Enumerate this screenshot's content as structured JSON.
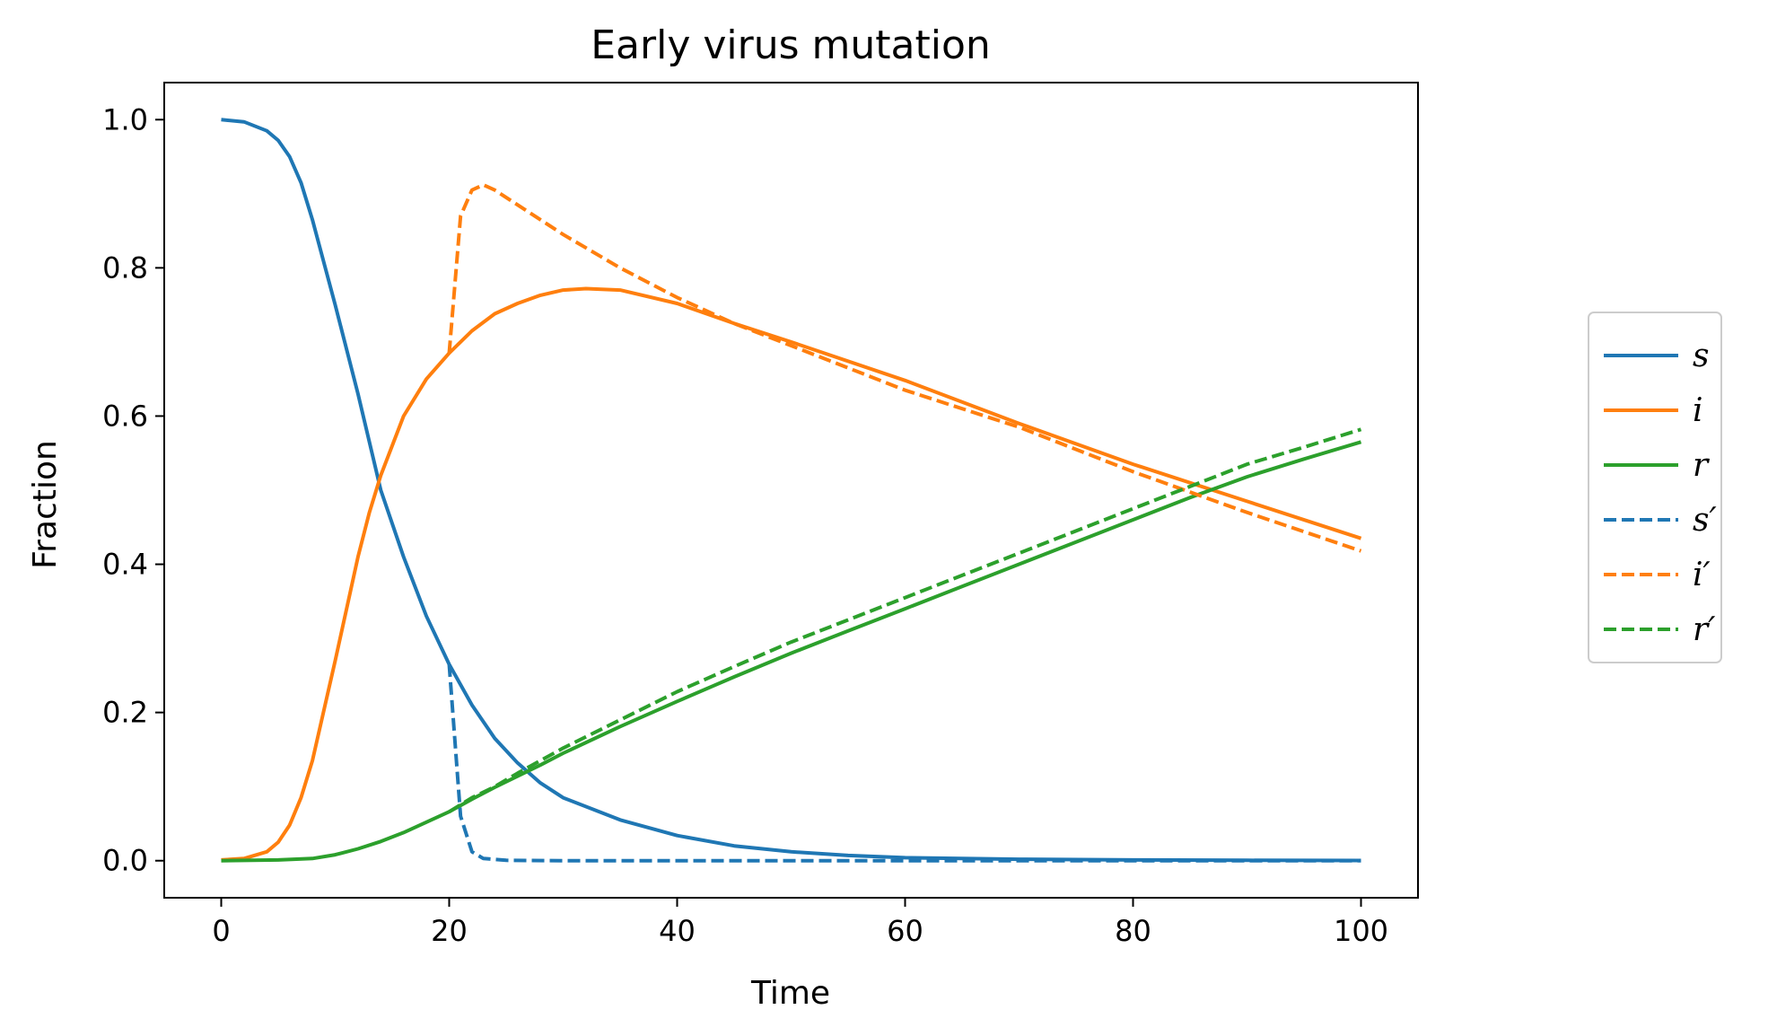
{
  "chart_data": {
    "type": "line",
    "title": "Early virus mutation",
    "xlabel": "Time",
    "ylabel": "Fraction",
    "xlim": [
      -5,
      105
    ],
    "ylim": [
      -0.05,
      1.05
    ],
    "xticks": [
      0,
      20,
      40,
      60,
      80,
      100
    ],
    "yticks": [
      0.0,
      0.2,
      0.4,
      0.6,
      0.8,
      1.0
    ],
    "xtick_labels": [
      "0",
      "20",
      "40",
      "60",
      "80",
      "100"
    ],
    "ytick_labels": [
      "0.0",
      "0.2",
      "0.4",
      "0.6",
      "0.8",
      "1.0"
    ],
    "grid": false,
    "legend_position": "outside-right",
    "series": [
      {
        "name": "s",
        "color": "#1f77b4",
        "style": "solid",
        "x": [
          0,
          2,
          4,
          5,
          6,
          7,
          8,
          10,
          12,
          14,
          16,
          18,
          20,
          22,
          24,
          26,
          28,
          30,
          35,
          40,
          45,
          50,
          55,
          60,
          70,
          80,
          90,
          100
        ],
        "y": [
          1.0,
          0.997,
          0.985,
          0.972,
          0.95,
          0.915,
          0.865,
          0.75,
          0.63,
          0.5,
          0.41,
          0.33,
          0.265,
          0.21,
          0.165,
          0.132,
          0.105,
          0.085,
          0.055,
          0.034,
          0.02,
          0.012,
          0.007,
          0.004,
          0.002,
          0.001,
          0.0005,
          0.0003
        ]
      },
      {
        "name": "i",
        "color": "#ff7f0e",
        "style": "solid",
        "x": [
          0,
          2,
          4,
          5,
          6,
          7,
          8,
          10,
          12,
          13,
          14,
          15,
          16,
          18,
          20,
          22,
          24,
          26,
          28,
          30,
          32,
          35,
          40,
          45,
          50,
          60,
          70,
          80,
          90,
          100
        ],
        "y": [
          0.001,
          0.003,
          0.012,
          0.025,
          0.048,
          0.085,
          0.135,
          0.27,
          0.41,
          0.47,
          0.52,
          0.56,
          0.6,
          0.65,
          0.685,
          0.715,
          0.738,
          0.752,
          0.763,
          0.77,
          0.772,
          0.77,
          0.752,
          0.725,
          0.7,
          0.648,
          0.59,
          0.535,
          0.485,
          0.435
        ]
      },
      {
        "name": "r",
        "color": "#2ca02c",
        "style": "solid",
        "x": [
          0,
          5,
          8,
          10,
          12,
          14,
          16,
          18,
          20,
          22,
          24,
          26,
          28,
          30,
          35,
          40,
          45,
          50,
          55,
          60,
          65,
          70,
          75,
          80,
          85,
          90,
          95,
          100
        ],
        "y": [
          0.0,
          0.001,
          0.003,
          0.008,
          0.016,
          0.026,
          0.038,
          0.052,
          0.066,
          0.083,
          0.099,
          0.114,
          0.129,
          0.145,
          0.181,
          0.215,
          0.248,
          0.28,
          0.31,
          0.34,
          0.37,
          0.4,
          0.43,
          0.46,
          0.49,
          0.518,
          0.542,
          0.565
        ]
      },
      {
        "name": "s′",
        "color": "#1f77b4",
        "style": "dashed",
        "x": [
          20,
          21,
          22,
          23,
          25,
          30,
          40,
          50,
          60,
          70,
          80,
          90,
          100
        ],
        "y": [
          0.265,
          0.06,
          0.012,
          0.003,
          0.0005,
          0.0,
          0.0,
          0.0,
          0.0,
          0.0,
          0.0,
          0.0,
          0.0
        ]
      },
      {
        "name": "i′",
        "color": "#ff7f0e",
        "style": "dashed",
        "x": [
          20,
          21,
          22,
          23,
          24,
          26,
          28,
          30,
          35,
          40,
          45,
          50,
          60,
          70,
          80,
          90,
          100
        ],
        "y": [
          0.685,
          0.87,
          0.905,
          0.912,
          0.905,
          0.885,
          0.865,
          0.845,
          0.8,
          0.76,
          0.725,
          0.695,
          0.635,
          0.585,
          0.525,
          0.47,
          0.418
        ]
      },
      {
        "name": "r′",
        "color": "#2ca02c",
        "style": "dashed",
        "x": [
          20,
          22,
          24,
          26,
          28,
          30,
          35,
          40,
          45,
          50,
          55,
          60,
          65,
          70,
          75,
          80,
          85,
          90,
          95,
          100
        ],
        "y": [
          0.066,
          0.085,
          0.1,
          0.118,
          0.135,
          0.152,
          0.19,
          0.228,
          0.262,
          0.295,
          0.325,
          0.355,
          0.385,
          0.415,
          0.445,
          0.475,
          0.505,
          0.535,
          0.558,
          0.582
        ]
      }
    ]
  }
}
